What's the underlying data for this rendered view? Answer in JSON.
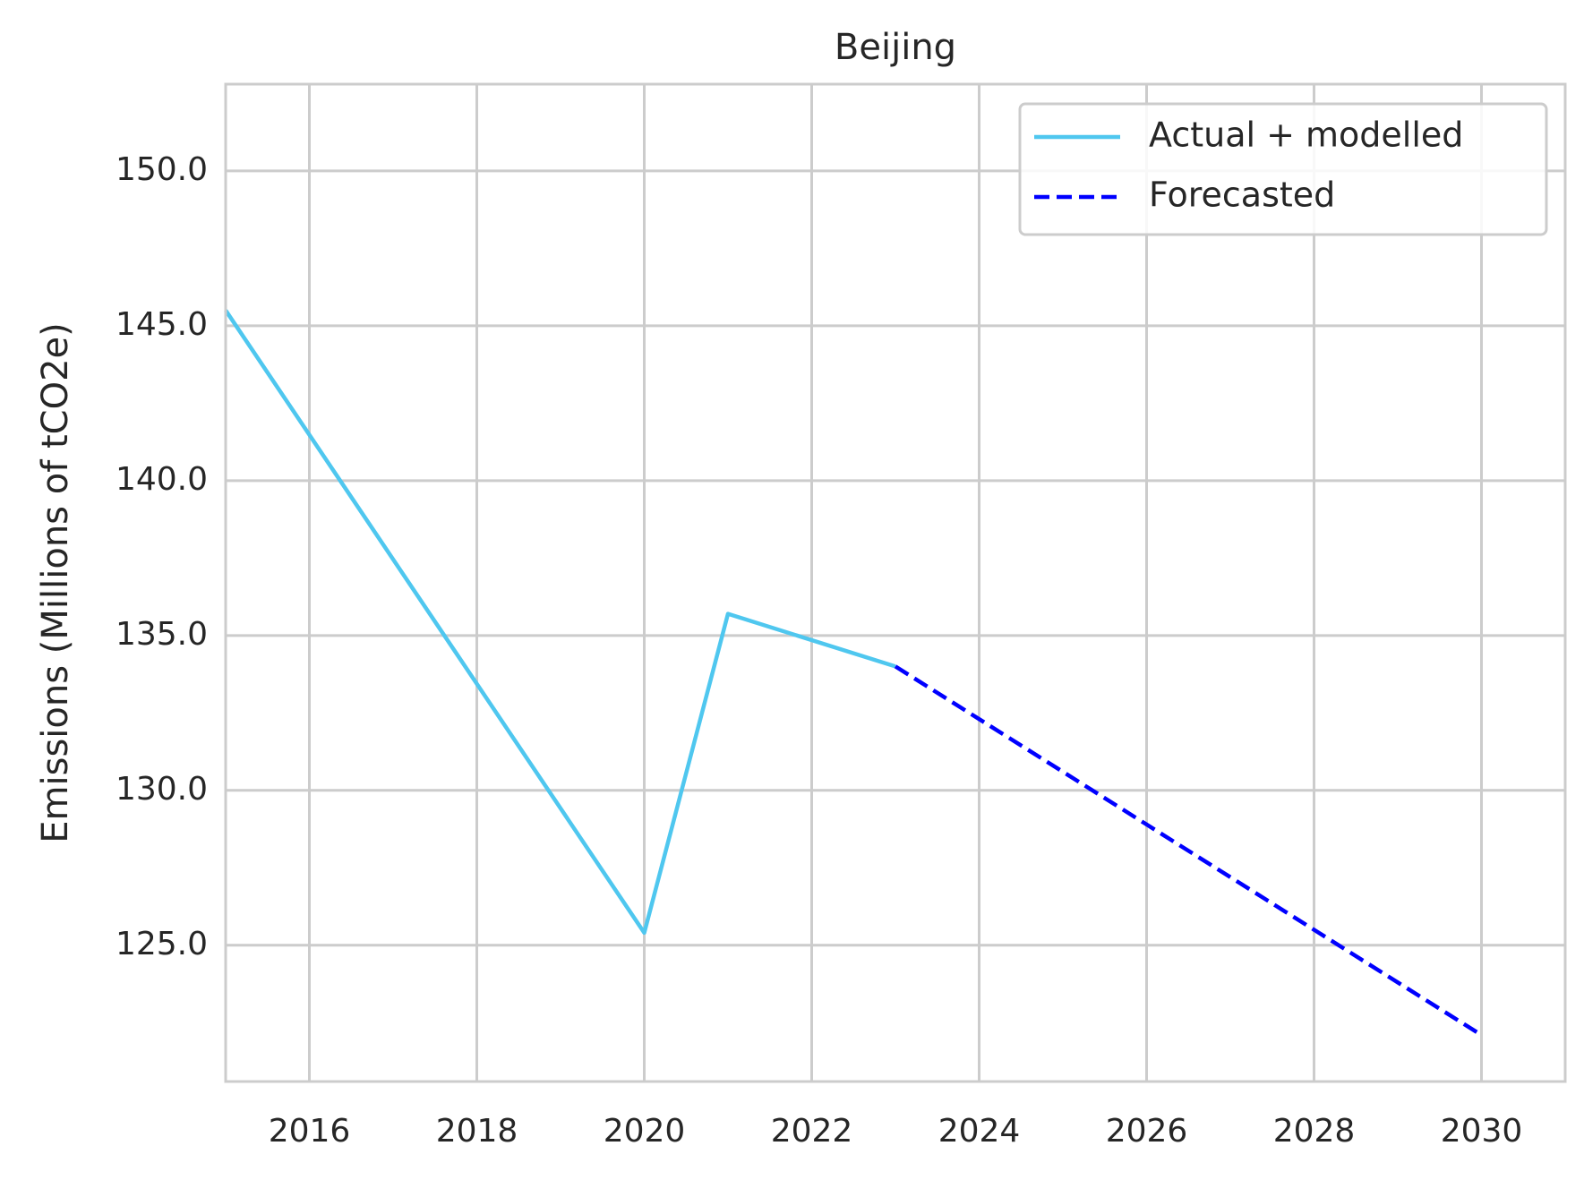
{
  "chart_data": {
    "type": "line",
    "title": "Beijing",
    "xlabel": "",
    "ylabel": "Emissions (Millions of tCO2e)",
    "xlim": [
      2015,
      2031
    ],
    "ylim": [
      120.6,
      152.8
    ],
    "xticks": [
      2016,
      2018,
      2020,
      2022,
      2024,
      2026,
      2028,
      2030
    ],
    "yticks": [
      125.0,
      130.0,
      135.0,
      140.0,
      145.0,
      150.0
    ],
    "ytick_labels": [
      "125.0",
      "130.0",
      "135.0",
      "140.0",
      "145.0",
      "150.0"
    ],
    "grid": true,
    "legend_position": "top-right",
    "series": [
      {
        "name": "Actual + modelled",
        "style": "solid",
        "color": "#4fc7ef",
        "x": [
          2015,
          2020,
          2021,
          2023
        ],
        "y": [
          145.5,
          125.4,
          135.7,
          134.0
        ]
      },
      {
        "name": "Forecasted",
        "style": "dashed",
        "color": "#0000ff",
        "x": [
          2023,
          2024,
          2025,
          2026,
          2027,
          2028,
          2029,
          2030
        ],
        "y": [
          134.0,
          132.3,
          130.6,
          128.9,
          127.2,
          125.5,
          123.8,
          122.1
        ]
      }
    ]
  }
}
